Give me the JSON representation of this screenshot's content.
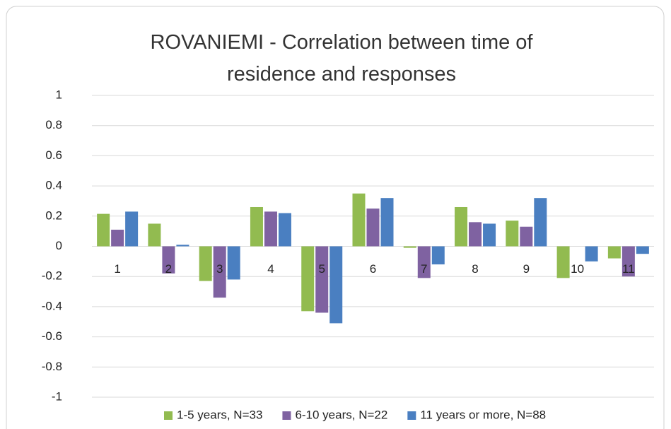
{
  "chart_data": {
    "type": "bar",
    "title": "ROVANIEMI - Correlation between time of residence and responses",
    "categories": [
      "1",
      "2",
      "3",
      "4",
      "5",
      "6",
      "7",
      "8",
      "9",
      "10",
      "11"
    ],
    "series": [
      {
        "name": "1-5 years, N=33",
        "color": "#92bb50",
        "values": [
          0.215,
          0.15,
          -0.23,
          0.26,
          -0.43,
          0.35,
          -0.01,
          0.26,
          0.17,
          -0.21,
          -0.08
        ]
      },
      {
        "name": "6-10 years, N=22",
        "color": "#7f62a1",
        "values": [
          0.11,
          -0.18,
          -0.34,
          0.23,
          -0.44,
          0.25,
          -0.21,
          0.16,
          0.13,
          0,
          -0.2
        ]
      },
      {
        "name": "11 years or more, N=88",
        "color": "#4a7fc1",
        "values": [
          0.23,
          0.01,
          -0.22,
          0.22,
          -0.51,
          0.32,
          -0.12,
          0.15,
          0.32,
          -0.1,
          -0.05
        ]
      }
    ],
    "ylim": [
      -1,
      1
    ],
    "yticks": [
      -1,
      -0.8,
      -0.6,
      -0.4,
      -0.2,
      0,
      0.2,
      0.4,
      0.6,
      0.8,
      1
    ],
    "grid": true,
    "legend": "bottom"
  }
}
